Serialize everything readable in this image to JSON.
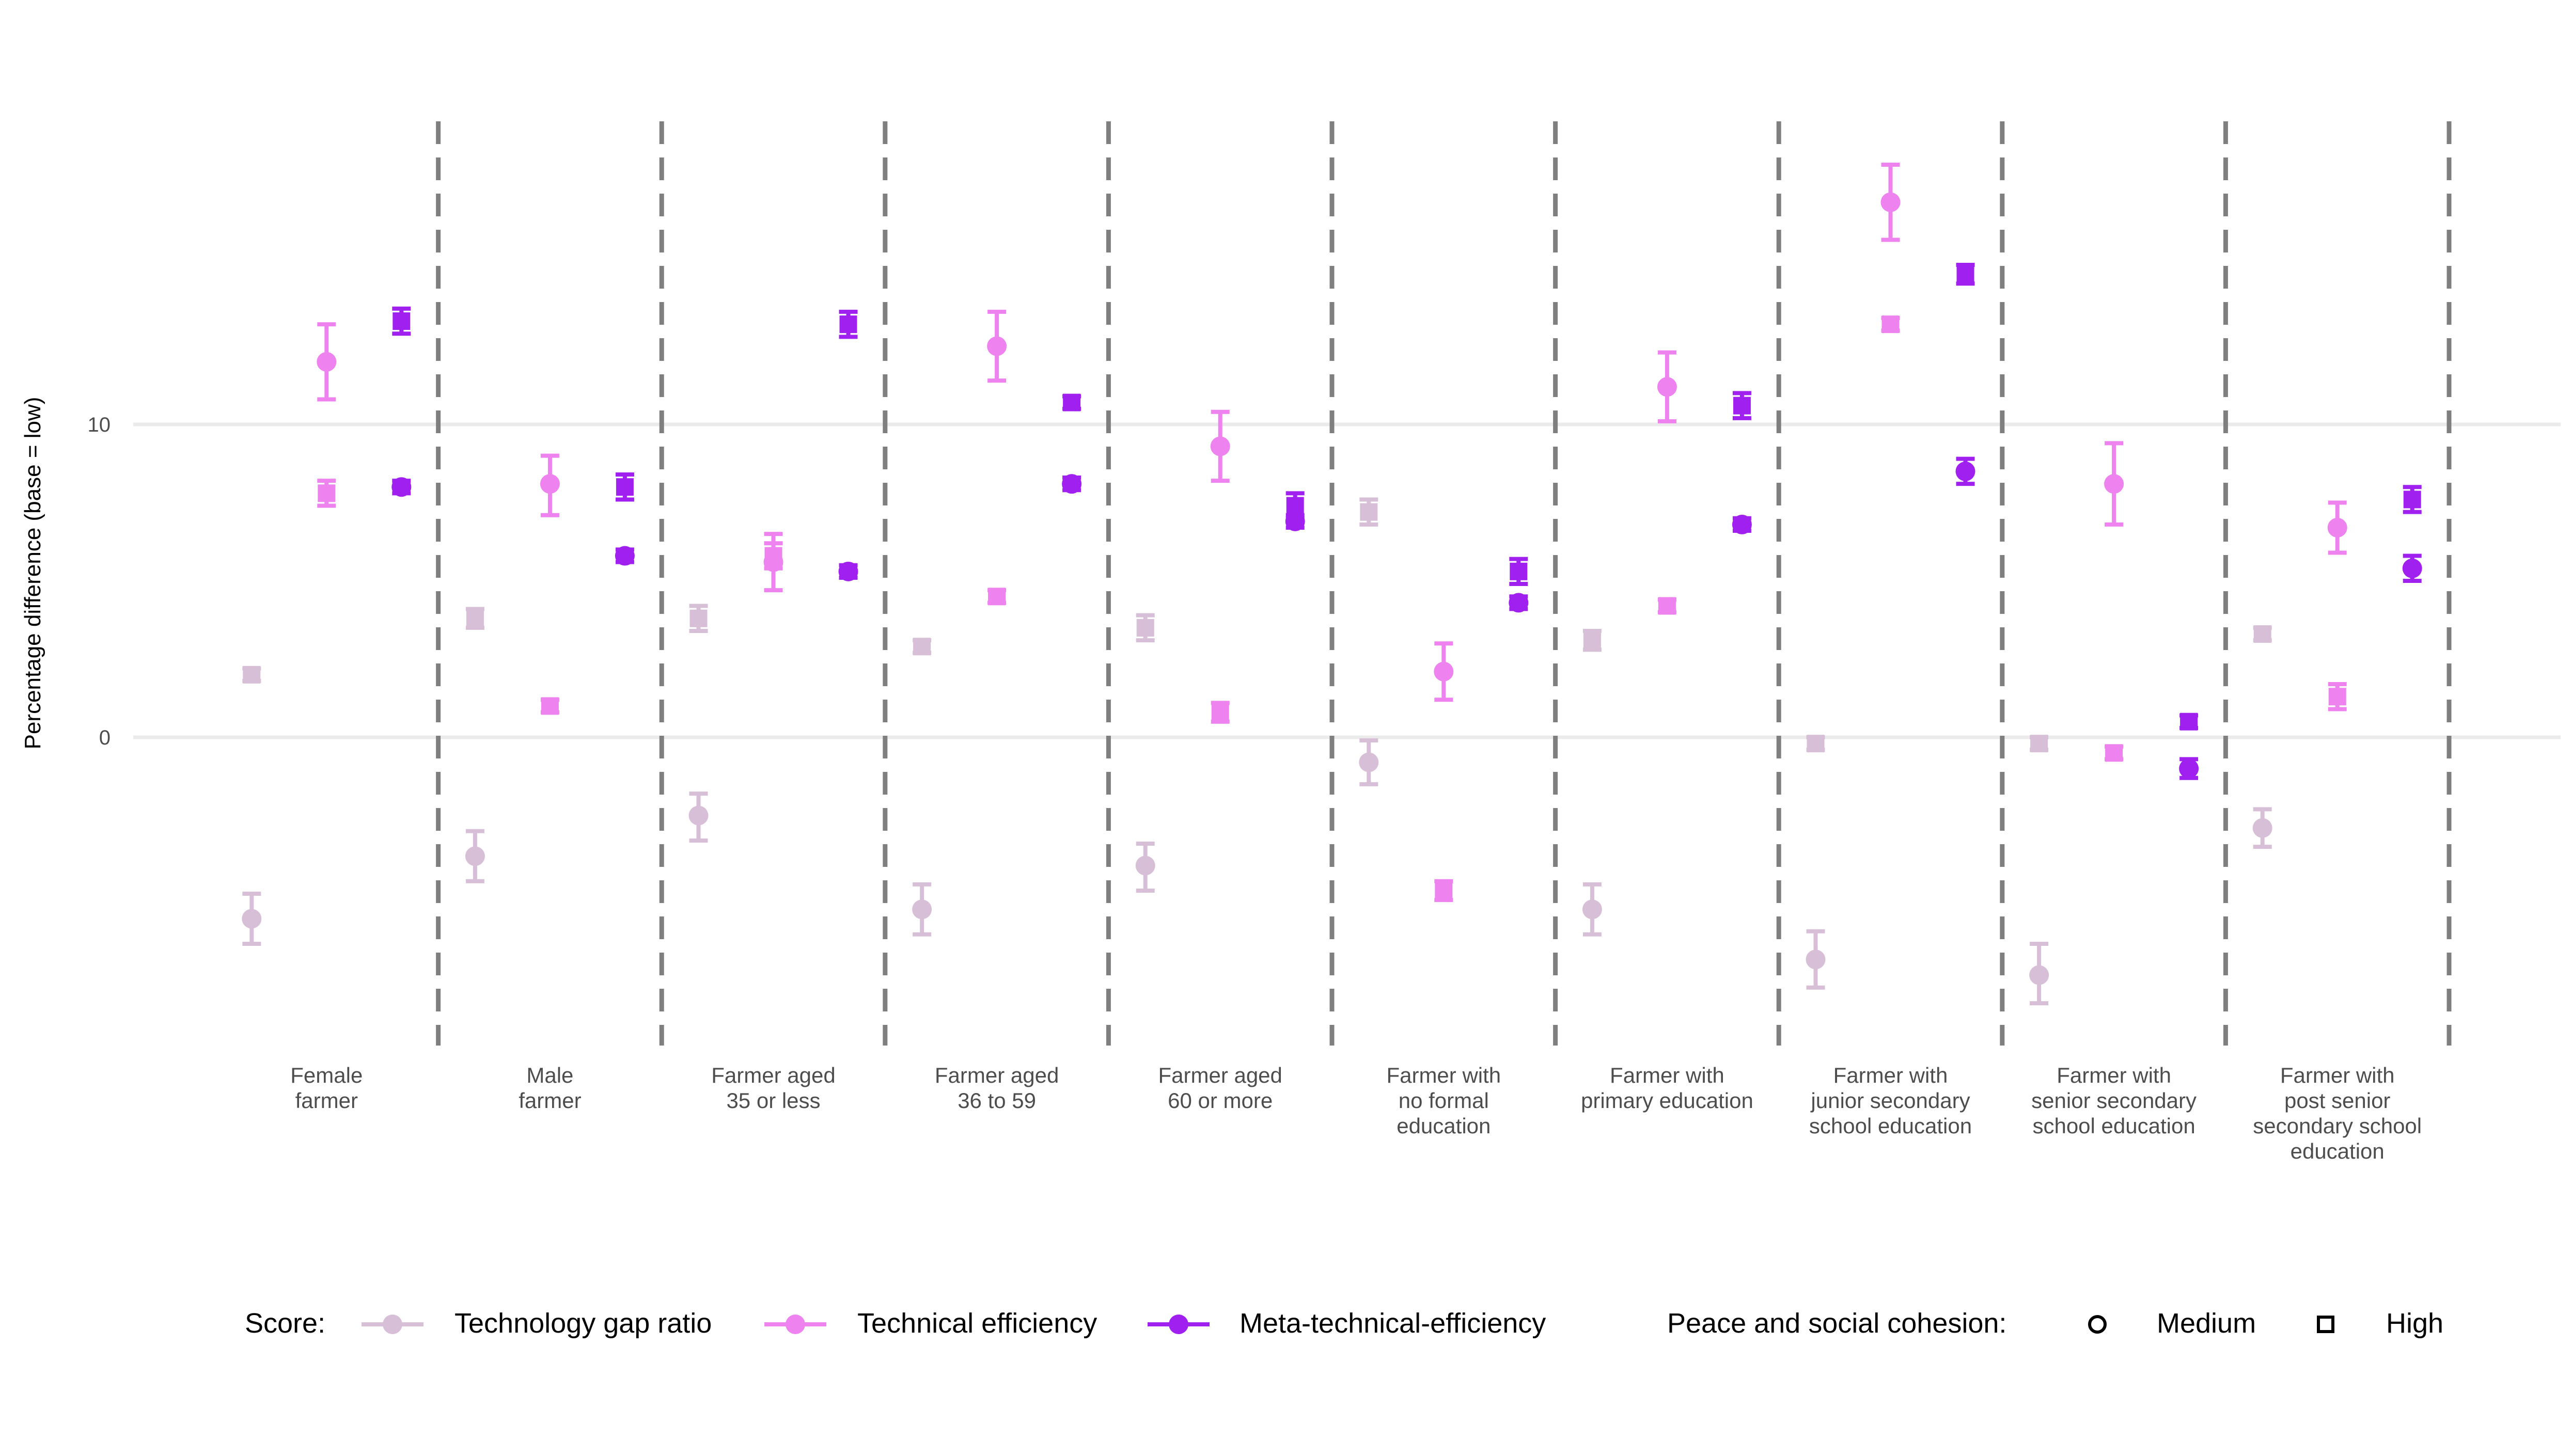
{
  "chart_data": {
    "type": "scatter",
    "title": "",
    "xlabel": "",
    "ylabel": "Percentage difference (base = low)",
    "ylim": [
      -9.8,
      19.5
    ],
    "yticks": [
      0,
      10
    ],
    "grid": true,
    "legend_position": "bottom",
    "categories": [
      [
        "Female",
        "farmer"
      ],
      [
        "Male",
        "farmer"
      ],
      [
        "Farmer aged",
        "35 or less"
      ],
      [
        "Farmer aged",
        "36 to 59"
      ],
      [
        "Farmer aged",
        "60 or more"
      ],
      [
        "Farmer with",
        "no formal",
        "education"
      ],
      [
        "Farmer with",
        "primary education"
      ],
      [
        "Farmer with",
        "junior secondary",
        "school education"
      ],
      [
        "Farmer with",
        "senior secondary",
        "school education"
      ],
      [
        "Farmer with",
        "post senior",
        "secondary school",
        "education"
      ]
    ],
    "score_legend_title": "Score:",
    "shape_legend_title": "Peace and social cohesion:",
    "scores": [
      {
        "name": "Technology gap ratio",
        "color": "#d8bfd8"
      },
      {
        "name": "Technical efficiency",
        "color": "#ee82ee"
      },
      {
        "name": "Meta-technical-efficiency",
        "color": "#a020f0"
      }
    ],
    "levels": [
      {
        "name": "Medium",
        "shape": "circle"
      },
      {
        "name": "High",
        "shape": "square"
      }
    ],
    "points": [
      {
        "cat": 0,
        "score": 0,
        "level": 0,
        "y": -5.8,
        "lo": -6.6,
        "hi": -5.0
      },
      {
        "cat": 0,
        "score": 0,
        "level": 1,
        "y": 2.0,
        "lo": 1.8,
        "hi": 2.2
      },
      {
        "cat": 0,
        "score": 1,
        "level": 0,
        "y": 12.0,
        "lo": 10.8,
        "hi": 13.2
      },
      {
        "cat": 0,
        "score": 1,
        "level": 1,
        "y": 7.8,
        "lo": 7.4,
        "hi": 8.2
      },
      {
        "cat": 0,
        "score": 2,
        "level": 0,
        "y": 8.0,
        "lo": 7.8,
        "hi": 8.2
      },
      {
        "cat": 0,
        "score": 2,
        "level": 1,
        "y": 13.3,
        "lo": 12.9,
        "hi": 13.7
      },
      {
        "cat": 1,
        "score": 0,
        "level": 0,
        "y": -3.8,
        "lo": -4.6,
        "hi": -3.0
      },
      {
        "cat": 1,
        "score": 0,
        "level": 1,
        "y": 3.8,
        "lo": 3.5,
        "hi": 4.1
      },
      {
        "cat": 1,
        "score": 1,
        "level": 0,
        "y": 8.1,
        "lo": 7.1,
        "hi": 9.0
      },
      {
        "cat": 1,
        "score": 1,
        "level": 1,
        "y": 1.0,
        "lo": 0.8,
        "hi": 1.2
      },
      {
        "cat": 1,
        "score": 2,
        "level": 0,
        "y": 5.8,
        "lo": 5.6,
        "hi": 6.0
      },
      {
        "cat": 1,
        "score": 2,
        "level": 1,
        "y": 8.0,
        "lo": 7.6,
        "hi": 8.4
      },
      {
        "cat": 2,
        "score": 0,
        "level": 0,
        "y": -2.5,
        "lo": -3.3,
        "hi": -1.8
      },
      {
        "cat": 2,
        "score": 0,
        "level": 1,
        "y": 3.8,
        "lo": 3.4,
        "hi": 4.2
      },
      {
        "cat": 2,
        "score": 1,
        "level": 0,
        "y": 5.6,
        "lo": 4.7,
        "hi": 6.5
      },
      {
        "cat": 2,
        "score": 1,
        "level": 1,
        "y": 5.8,
        "lo": 5.4,
        "hi": 6.2
      },
      {
        "cat": 2,
        "score": 2,
        "level": 0,
        "y": 5.3,
        "lo": 5.1,
        "hi": 5.5
      },
      {
        "cat": 2,
        "score": 2,
        "level": 1,
        "y": 13.2,
        "lo": 12.8,
        "hi": 13.6
      },
      {
        "cat": 3,
        "score": 0,
        "level": 0,
        "y": -5.5,
        "lo": -6.3,
        "hi": -4.7
      },
      {
        "cat": 3,
        "score": 0,
        "level": 1,
        "y": 2.9,
        "lo": 2.7,
        "hi": 3.1
      },
      {
        "cat": 3,
        "score": 1,
        "level": 0,
        "y": 12.5,
        "lo": 11.4,
        "hi": 13.6
      },
      {
        "cat": 3,
        "score": 1,
        "level": 1,
        "y": 4.5,
        "lo": 4.3,
        "hi": 4.7
      },
      {
        "cat": 3,
        "score": 2,
        "level": 0,
        "y": 8.1,
        "lo": 7.9,
        "hi": 8.3
      },
      {
        "cat": 3,
        "score": 2,
        "level": 1,
        "y": 10.7,
        "lo": 10.5,
        "hi": 10.9
      },
      {
        "cat": 4,
        "score": 0,
        "level": 0,
        "y": -4.1,
        "lo": -4.9,
        "hi": -3.4
      },
      {
        "cat": 4,
        "score": 0,
        "level": 1,
        "y": 3.5,
        "lo": 3.1,
        "hi": 3.9
      },
      {
        "cat": 4,
        "score": 1,
        "level": 0,
        "y": 9.3,
        "lo": 8.2,
        "hi": 10.4
      },
      {
        "cat": 4,
        "score": 1,
        "level": 1,
        "y": 0.8,
        "lo": 0.5,
        "hi": 1.1
      },
      {
        "cat": 4,
        "score": 2,
        "level": 0,
        "y": 6.9,
        "lo": 6.7,
        "hi": 7.1
      },
      {
        "cat": 4,
        "score": 2,
        "level": 1,
        "y": 7.4,
        "lo": 7.0,
        "hi": 7.8
      },
      {
        "cat": 5,
        "score": 0,
        "level": 0,
        "y": -0.8,
        "lo": -1.5,
        "hi": -0.1
      },
      {
        "cat": 5,
        "score": 0,
        "level": 1,
        "y": 7.2,
        "lo": 6.8,
        "hi": 7.6
      },
      {
        "cat": 5,
        "score": 1,
        "level": 0,
        "y": 2.1,
        "lo": 1.2,
        "hi": 3.0
      },
      {
        "cat": 5,
        "score": 1,
        "level": 1,
        "y": -4.9,
        "lo": -5.2,
        "hi": -4.6
      },
      {
        "cat": 5,
        "score": 2,
        "level": 0,
        "y": 4.3,
        "lo": 4.1,
        "hi": 4.5
      },
      {
        "cat": 5,
        "score": 2,
        "level": 1,
        "y": 5.3,
        "lo": 4.9,
        "hi": 5.7
      },
      {
        "cat": 6,
        "score": 0,
        "level": 0,
        "y": -5.5,
        "lo": -6.3,
        "hi": -4.7
      },
      {
        "cat": 6,
        "score": 0,
        "level": 1,
        "y": 3.1,
        "lo": 2.8,
        "hi": 3.4
      },
      {
        "cat": 6,
        "score": 1,
        "level": 0,
        "y": 11.2,
        "lo": 10.1,
        "hi": 12.3
      },
      {
        "cat": 6,
        "score": 1,
        "level": 1,
        "y": 4.2,
        "lo": 4.0,
        "hi": 4.4
      },
      {
        "cat": 6,
        "score": 2,
        "level": 0,
        "y": 6.8,
        "lo": 6.6,
        "hi": 7.0
      },
      {
        "cat": 6,
        "score": 2,
        "level": 1,
        "y": 10.6,
        "lo": 10.2,
        "hi": 11.0
      },
      {
        "cat": 7,
        "score": 0,
        "level": 0,
        "y": -7.1,
        "lo": -8.0,
        "hi": -6.2
      },
      {
        "cat": 7,
        "score": 0,
        "level": 1,
        "y": -0.2,
        "lo": -0.4,
        "hi": 0.0
      },
      {
        "cat": 7,
        "score": 1,
        "level": 0,
        "y": 17.1,
        "lo": 15.9,
        "hi": 18.3
      },
      {
        "cat": 7,
        "score": 1,
        "level": 1,
        "y": 13.2,
        "lo": 13.0,
        "hi": 13.4
      },
      {
        "cat": 7,
        "score": 2,
        "level": 0,
        "y": 8.5,
        "lo": 8.1,
        "hi": 8.9
      },
      {
        "cat": 7,
        "score": 2,
        "level": 1,
        "y": 14.8,
        "lo": 14.5,
        "hi": 15.1
      },
      {
        "cat": 8,
        "score": 0,
        "level": 0,
        "y": -7.6,
        "lo": -8.5,
        "hi": -6.6
      },
      {
        "cat": 8,
        "score": 0,
        "level": 1,
        "y": -0.2,
        "lo": -0.4,
        "hi": 0.0
      },
      {
        "cat": 8,
        "score": 1,
        "level": 0,
        "y": 8.1,
        "lo": 6.8,
        "hi": 9.4
      },
      {
        "cat": 8,
        "score": 1,
        "level": 1,
        "y": -0.5,
        "lo": -0.7,
        "hi": -0.3
      },
      {
        "cat": 8,
        "score": 2,
        "level": 0,
        "y": -1.0,
        "lo": -1.3,
        "hi": -0.7
      },
      {
        "cat": 8,
        "score": 2,
        "level": 1,
        "y": 0.5,
        "lo": 0.3,
        "hi": 0.7
      },
      {
        "cat": 9,
        "score": 0,
        "level": 0,
        "y": -2.9,
        "lo": -3.5,
        "hi": -2.3
      },
      {
        "cat": 9,
        "score": 0,
        "level": 1,
        "y": 3.3,
        "lo": 3.1,
        "hi": 3.5
      },
      {
        "cat": 9,
        "score": 1,
        "level": 0,
        "y": 6.7,
        "lo": 5.9,
        "hi": 7.5
      },
      {
        "cat": 9,
        "score": 1,
        "level": 1,
        "y": 1.3,
        "lo": 0.9,
        "hi": 1.7
      },
      {
        "cat": 9,
        "score": 2,
        "level": 0,
        "y": 5.4,
        "lo": 5.0,
        "hi": 5.8
      },
      {
        "cat": 9,
        "score": 2,
        "level": 1,
        "y": 7.6,
        "lo": 7.2,
        "hi": 8.0
      }
    ]
  }
}
